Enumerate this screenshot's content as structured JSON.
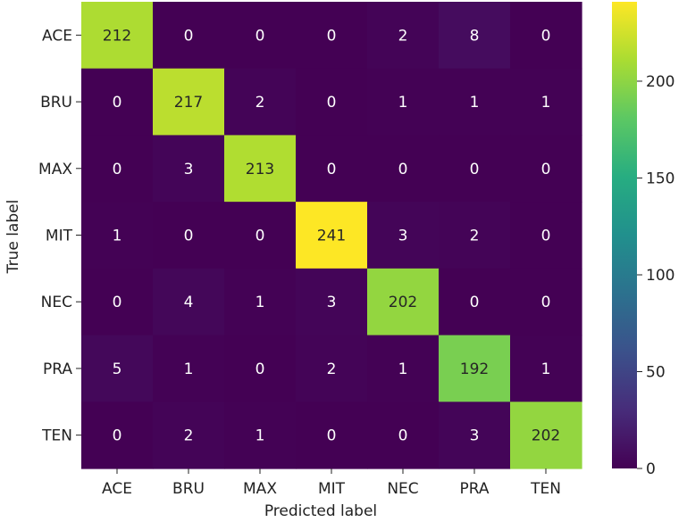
{
  "chart_data": {
    "type": "heatmap",
    "xlabel": "Predicted label",
    "ylabel": "True label",
    "x_categories": [
      "ACE",
      "BRU",
      "MAX",
      "MIT",
      "NEC",
      "PRA",
      "TEN"
    ],
    "y_categories": [
      "ACE",
      "BRU",
      "MAX",
      "MIT",
      "NEC",
      "PRA",
      "TEN"
    ],
    "values": [
      [
        212,
        0,
        0,
        0,
        2,
        8,
        0
      ],
      [
        0,
        217,
        2,
        0,
        1,
        1,
        1
      ],
      [
        0,
        3,
        213,
        0,
        0,
        0,
        0
      ],
      [
        1,
        0,
        0,
        241,
        3,
        2,
        0
      ],
      [
        0,
        4,
        1,
        3,
        202,
        0,
        0
      ],
      [
        5,
        1,
        0,
        2,
        1,
        192,
        1
      ],
      [
        0,
        2,
        1,
        0,
        0,
        3,
        202
      ]
    ],
    "colormap": "viridis",
    "color_range": [
      0,
      241
    ],
    "colorbar_ticks": [
      "0",
      "50",
      "100",
      "150",
      "200"
    ],
    "colorbar_tick_values": [
      0,
      50,
      100,
      150,
      200
    ]
  }
}
